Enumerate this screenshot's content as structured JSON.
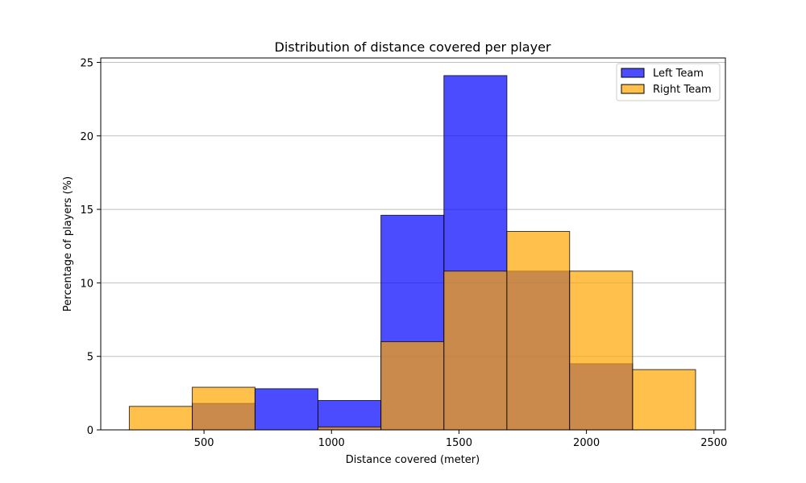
{
  "chart_data": {
    "type": "bar",
    "title": "Distribution of distance covered per player",
    "xlabel": "Distance covered (meter)",
    "ylabel": "Percentage of players (%)",
    "xlim": [
      95,
      2545
    ],
    "ylim": [
      0,
      25.3
    ],
    "xticks": [
      500,
      1000,
      1500,
      2000,
      2500
    ],
    "yticks": [
      0,
      5,
      10,
      15,
      20,
      25
    ],
    "grid": "y",
    "legend_position": "top-right",
    "bin_edges": [
      207,
      454,
      700,
      947,
      1194,
      1441,
      1688,
      1934,
      2181,
      2428
    ],
    "series": [
      {
        "name": "Left Team",
        "color": "#0000ff",
        "opacity": 0.7,
        "values": [
          0,
          1.8,
          2.8,
          2.0,
          14.6,
          24.1,
          10.8,
          4.5,
          0
        ]
      },
      {
        "name": "Right Team",
        "color": "#ffa500",
        "opacity": 0.7,
        "values": [
          1.6,
          2.9,
          0,
          0.2,
          6.0,
          10.8,
          13.5,
          10.8,
          4.1
        ]
      }
    ]
  }
}
